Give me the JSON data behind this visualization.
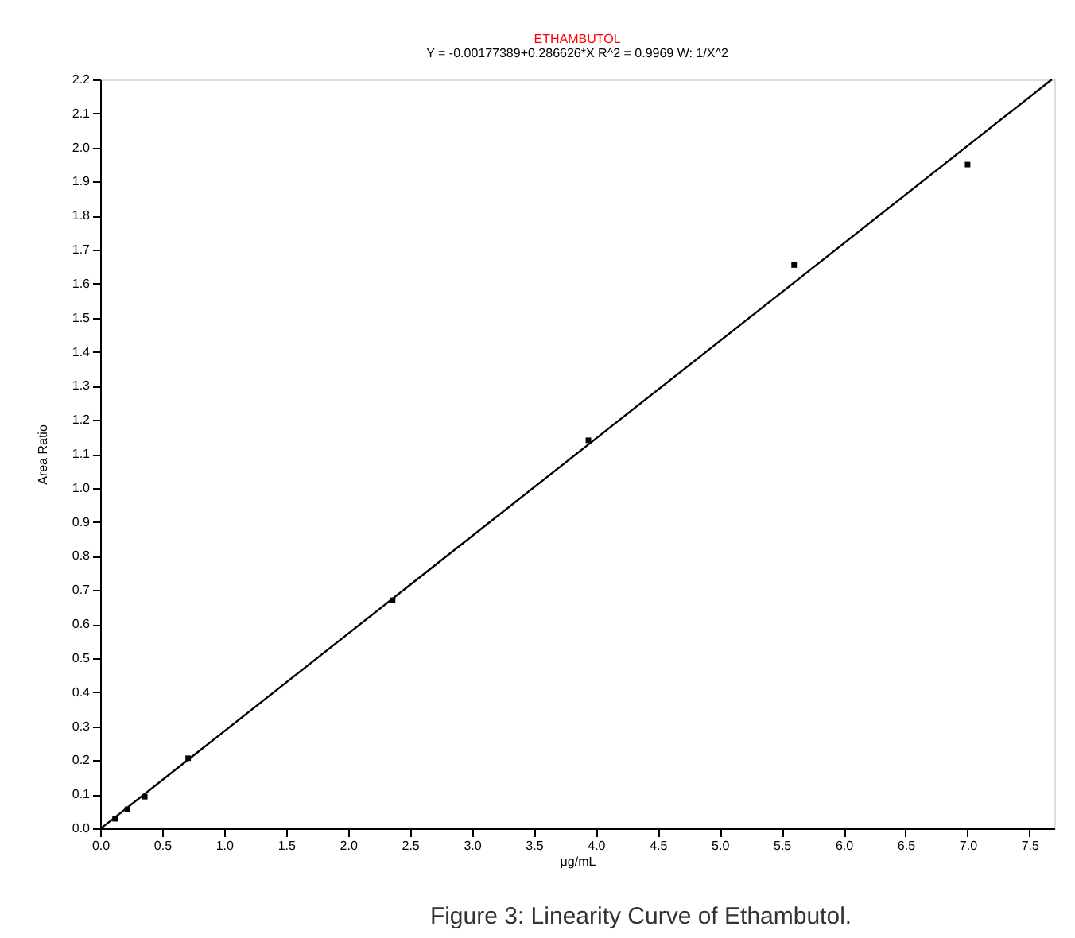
{
  "chart_data": {
    "type": "scatter",
    "title": "ETHAMBUTOL",
    "subtitle": "Y = -0.00177389+0.286626*X   R^2 = 0.9969   W: 1/X^2",
    "xlabel": "μg/mL",
    "ylabel": "Area Ratio",
    "xlim": [
      0,
      7.7
    ],
    "xticks": [
      {
        "value": 0,
        "label": "0.0"
      },
      0.5,
      {
        "value": 1,
        "label": "1.0"
      },
      1.5,
      {
        "value": 2,
        "label": "2.0"
      },
      2.5,
      {
        "value": 3,
        "label": "3.0"
      },
      3.5,
      {
        "value": 4,
        "label": "4.0"
      },
      4.5,
      {
        "value": 5,
        "label": "5.0"
      },
      5.5,
      {
        "value": 6,
        "label": "6.0"
      },
      6.5,
      {
        "value": 7,
        "label": "7.0"
      },
      7.5
    ],
    "ylim": [
      0,
      2.2
    ],
    "yticks": [
      {
        "value": 0,
        "label": "0.0"
      },
      0.1,
      0.2,
      0.3,
      0.4,
      0.5,
      0.6,
      0.7,
      0.8,
      0.9,
      {
        "value": 1,
        "label": "1.0"
      },
      1.1,
      1.2,
      1.3,
      1.4,
      1.5,
      1.6,
      1.7,
      1.8,
      1.9,
      {
        "value": 2,
        "label": "2.0"
      },
      2.1,
      2.2
    ],
    "grid": false,
    "series": [
      {
        "marker": "square",
        "color": "#000000",
        "x": [
          0.12,
          0.22,
          0.36,
          0.71,
          2.36,
          3.94,
          5.6,
          7.0
        ],
        "values": [
          0.028,
          0.056,
          0.093,
          0.206,
          0.67,
          1.14,
          1.655,
          1.95
        ]
      },
      {
        "type": "line",
        "marker": "none",
        "line_style": "solid",
        "color": "#000000",
        "x": [
          0.01,
          7.68
        ],
        "values": [
          0.001,
          2.2
        ]
      }
    ],
    "annotations": [
      "Figure 3: Linearity Curve of Ethambutol."
    ]
  }
}
